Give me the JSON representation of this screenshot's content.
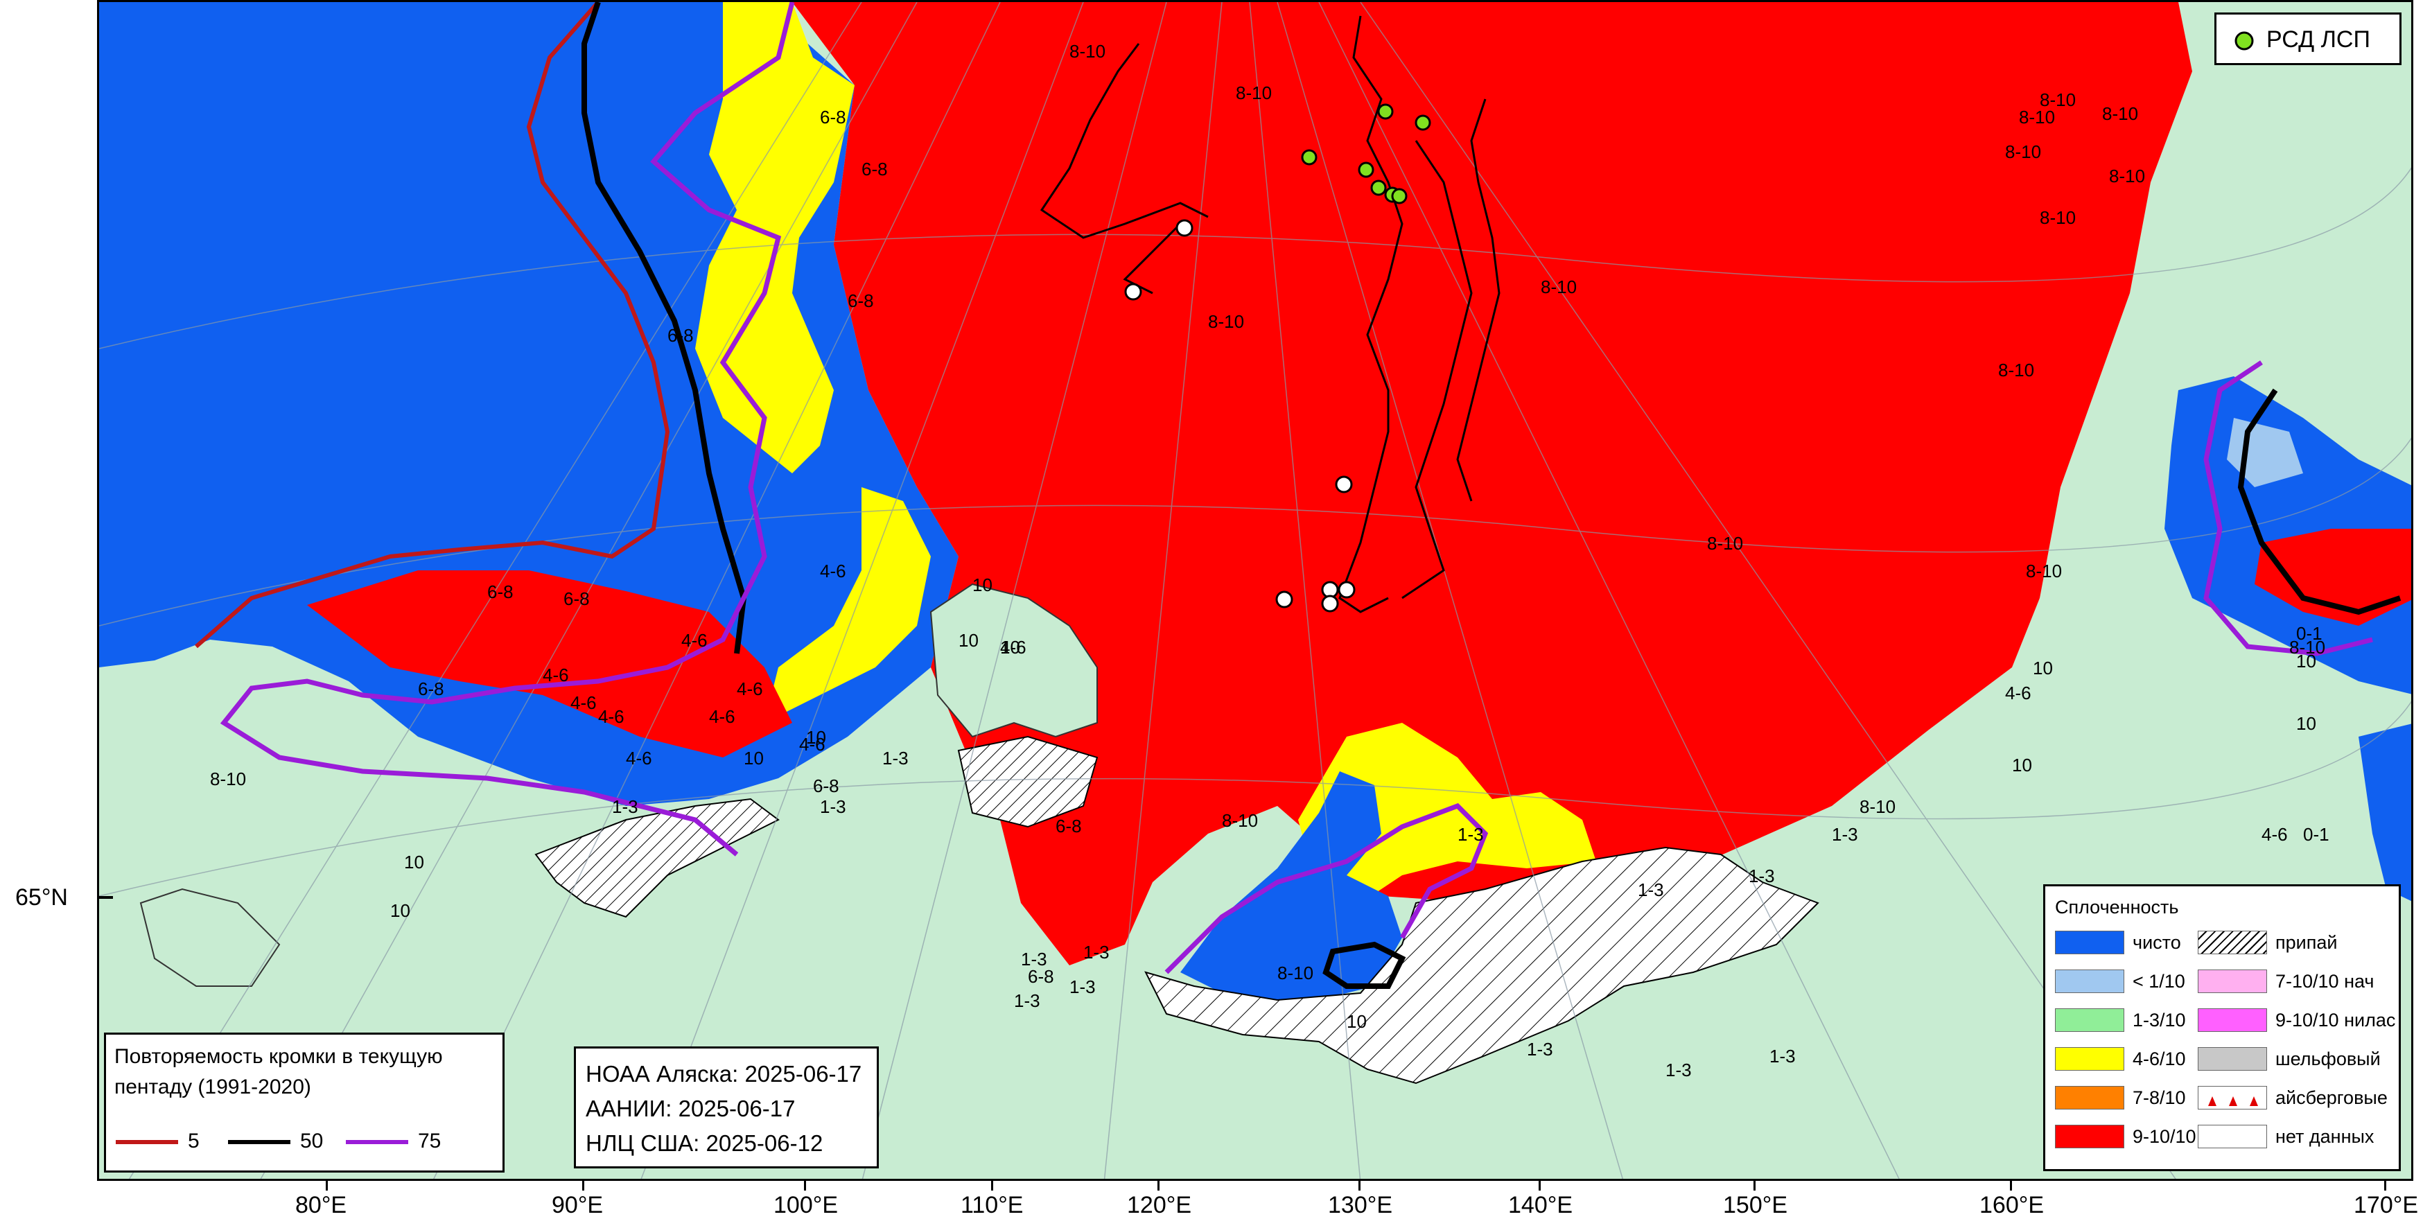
{
  "map": {
    "lat_label": "65°N",
    "lon_labels": [
      "80°E",
      "90°E",
      "100°E",
      "110°E",
      "120°E",
      "130°E",
      "140°E",
      "150°E",
      "160°E",
      "170°E"
    ]
  },
  "colors": {
    "land": "#c8ecd2",
    "clear_water": "#1060f0",
    "lt1": "#a0c8f0",
    "c1_3": "#90ee98",
    "c4_6": "#ffff00",
    "c7_8": "#ff8000",
    "c9_10": "#ff0000",
    "fast_ice": "#ffffff",
    "nilas_light": "#ffb0f0",
    "nilas": "#ff60ff",
    "shelf": "#c8c8c8",
    "no_data": "#ffffff",
    "edge_5": "#c01818",
    "edge_50": "#000000",
    "edge_75": "#9a1cd8",
    "station": "#80e020"
  },
  "stations_legend": {
    "label": "РСД ЛСП",
    "icon": "green-circle-icon"
  },
  "concentration_legend": {
    "title": "Сплоченность",
    "left": [
      {
        "label": "чисто",
        "color": "#1060f0",
        "pattern": "solid"
      },
      {
        "label": "< 1/10",
        "color": "#a0c8f0",
        "pattern": "solid"
      },
      {
        "label": "1-3/10",
        "color": "#90ee98",
        "pattern": "solid"
      },
      {
        "label": "4-6/10",
        "color": "#ffff00",
        "pattern": "solid"
      },
      {
        "label": "7-8/10",
        "color": "#ff8000",
        "pattern": "solid"
      },
      {
        "label": "9-10/10",
        "color": "#ff0000",
        "pattern": "solid"
      }
    ],
    "right": [
      {
        "label": "припай",
        "color": "#ffffff",
        "pattern": "hatch"
      },
      {
        "label": "7-10/10 нач",
        "color": "#ffb0f0",
        "pattern": "solid"
      },
      {
        "label": "9-10/10 нилас",
        "color": "#ff60ff",
        "pattern": "solid"
      },
      {
        "label": "шельфовый",
        "color": "#c8c8c8",
        "pattern": "solid"
      },
      {
        "label": "айсберговые",
        "color": "#ffffff",
        "pattern": "iceberg"
      },
      {
        "label": "нет данных",
        "color": "#ffffff",
        "pattern": "solid"
      }
    ]
  },
  "edge_legend": {
    "title_line1": "Повторяемость кромки в текущую",
    "title_line2": "пентаду (1991-2020)",
    "items": [
      {
        "label": "5",
        "color": "#c01818"
      },
      {
        "label": "50",
        "color": "#000000"
      },
      {
        "label": "75",
        "color": "#9a1cd8"
      }
    ]
  },
  "sources": {
    "line1": "НОАА Аляска: 2025-06-17",
    "line2": "ААНИИ: 2025-06-17",
    "line3": "НЛЦ США: 2025-06-12"
  },
  "conc_labels": [
    {
      "t": "8-10"
    },
    {
      "t": "8-10"
    },
    {
      "t": "8-10"
    },
    {
      "t": "8-10"
    },
    {
      "t": "8-10"
    },
    {
      "t": "8-10"
    },
    {
      "t": "8-10"
    },
    {
      "t": "8-10"
    },
    {
      "t": "8-10"
    },
    {
      "t": "8-10"
    },
    {
      "t": "8-10"
    },
    {
      "t": "8-10"
    },
    {
      "t": "8-10"
    },
    {
      "t": "8-10"
    },
    {
      "t": "8-10"
    },
    {
      "t": "8-10"
    },
    {
      "t": "8-10"
    },
    {
      "t": "8-10"
    },
    {
      "t": "6-8"
    },
    {
      "t": "6-8"
    },
    {
      "t": "6-8"
    },
    {
      "t": "6-8"
    },
    {
      "t": "6-8"
    },
    {
      "t": "6-8"
    },
    {
      "t": "6-8"
    },
    {
      "t": "6-8"
    },
    {
      "t": "6-8"
    },
    {
      "t": "6-8"
    },
    {
      "t": "4-6"
    },
    {
      "t": "4-6"
    },
    {
      "t": "4-6"
    },
    {
      "t": "4-6"
    },
    {
      "t": "4-6"
    },
    {
      "t": "4-6"
    },
    {
      "t": "4-6"
    },
    {
      "t": "4-6"
    },
    {
      "t": "4-6"
    },
    {
      "t": "4-6"
    },
    {
      "t": "4-6"
    },
    {
      "t": "4-6"
    },
    {
      "t": "1-3"
    },
    {
      "t": "1-3"
    },
    {
      "t": "1-3"
    },
    {
      "t": "1-3"
    },
    {
      "t": "1-3"
    },
    {
      "t": "1-3"
    },
    {
      "t": "1-3"
    },
    {
      "t": "1-3"
    },
    {
      "t": "1-3"
    },
    {
      "t": "1-3"
    },
    {
      "t": "1-3"
    },
    {
      "t": "1-3"
    },
    {
      "t": "1-3"
    },
    {
      "t": "1-3"
    },
    {
      "t": "10"
    },
    {
      "t": "10"
    },
    {
      "t": "10"
    },
    {
      "t": "10"
    },
    {
      "t": "10"
    },
    {
      "t": "10"
    },
    {
      "t": "10"
    },
    {
      "t": "10"
    },
    {
      "t": "10"
    },
    {
      "t": "10"
    },
    {
      "t": "10"
    },
    {
      "t": "10"
    },
    {
      "t": "0-1"
    },
    {
      "t": "0-1"
    }
  ]
}
